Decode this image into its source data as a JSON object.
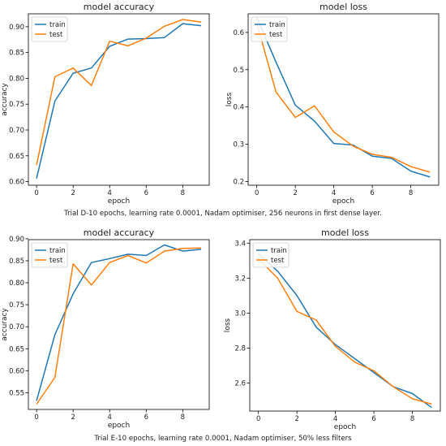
{
  "colors": {
    "train": "#1f77b4",
    "test": "#ff7f0e"
  },
  "captions": {
    "top": "Trial D-10 epochs, learning rate 0.0001, Nadam optimiser, 256 neurons in first dense layer.",
    "bottom": "Trial E-10 epochs, learning rate 0.0001, Nadam optimiser, 50% less filters"
  },
  "chart_data": [
    {
      "type": "line",
      "title": "model accuracy",
      "xlabel": "epoch",
      "ylabel": "accuracy",
      "x": [
        0,
        1,
        2,
        3,
        4,
        5,
        6,
        7,
        8,
        9
      ],
      "xticks": [
        0,
        2,
        4,
        6,
        8
      ],
      "yticks": [
        0.6,
        0.65,
        0.7,
        0.75,
        0.8,
        0.85,
        0.9
      ],
      "ylim": [
        0.593,
        0.925
      ],
      "xlim": [
        -0.45,
        9.45
      ],
      "legend": "upper-left",
      "series": [
        {
          "name": "train",
          "values": [
            0.606,
            0.756,
            0.81,
            0.82,
            0.862,
            0.876,
            0.877,
            0.879,
            0.906,
            0.902
          ]
        },
        {
          "name": "test",
          "values": [
            0.632,
            0.803,
            0.82,
            0.786,
            0.872,
            0.863,
            0.878,
            0.901,
            0.914,
            0.909
          ]
        }
      ]
    },
    {
      "type": "line",
      "title": "model loss",
      "xlabel": "epoch",
      "ylabel": "loss",
      "x": [
        0,
        1,
        2,
        3,
        4,
        5,
        6,
        7,
        8,
        9
      ],
      "xticks": [
        0,
        2,
        4,
        6,
        8
      ],
      "yticks": [
        0.2,
        0.3,
        0.4,
        0.5,
        0.6
      ],
      "ylim": [
        0.19,
        0.65
      ],
      "xlim": [
        -0.45,
        9.45
      ],
      "legend": "upper-left",
      "series": [
        {
          "name": "train",
          "values": [
            0.64,
            0.52,
            0.405,
            0.362,
            0.302,
            0.298,
            0.268,
            0.262,
            0.228,
            0.212
          ]
        },
        {
          "name": "test",
          "values": [
            0.625,
            0.44,
            0.372,
            0.403,
            0.333,
            0.295,
            0.273,
            0.265,
            0.24,
            0.225
          ]
        }
      ]
    },
    {
      "type": "line",
      "title": "model accuracy",
      "xlabel": "epoch",
      "ylabel": "accuracy",
      "x": [
        0,
        1,
        2,
        3,
        4,
        5,
        6,
        7,
        8,
        9
      ],
      "xticks": [
        0,
        2,
        4,
        6,
        8
      ],
      "yticks": [
        0.55,
        0.6,
        0.65,
        0.7,
        0.75,
        0.8,
        0.85,
        0.9
      ],
      "ylim": [
        0.512,
        0.898
      ],
      "xlim": [
        -0.45,
        9.45
      ],
      "legend": "upper-left",
      "series": [
        {
          "name": "train",
          "values": [
            0.532,
            0.682,
            0.775,
            0.846,
            0.855,
            0.865,
            0.862,
            0.886,
            0.872,
            0.876
          ]
        },
        {
          "name": "test",
          "values": [
            0.524,
            0.585,
            0.843,
            0.795,
            0.846,
            0.862,
            0.845,
            0.872,
            0.878,
            0.879
          ]
        }
      ]
    },
    {
      "type": "line",
      "title": "model loss",
      "xlabel": "epoch",
      "ylabel": "loss",
      "x": [
        0,
        1,
        2,
        3,
        4,
        5,
        6,
        7,
        8,
        9
      ],
      "xticks": [
        0,
        2,
        4,
        6,
        8
      ],
      "yticks": [
        2.6,
        2.8,
        3.0,
        3.2,
        3.4
      ],
      "ylim": [
        2.44,
        3.42
      ],
      "xlim": [
        -0.45,
        9.45
      ],
      "legend": "upper-left",
      "series": [
        {
          "name": "train",
          "values": [
            3.34,
            3.24,
            3.1,
            2.92,
            2.82,
            2.74,
            2.66,
            2.58,
            2.54,
            2.46
          ]
        },
        {
          "name": "test",
          "values": [
            3.31,
            3.2,
            3.01,
            2.96,
            2.81,
            2.72,
            2.67,
            2.58,
            2.51,
            2.48
          ]
        }
      ]
    }
  ]
}
